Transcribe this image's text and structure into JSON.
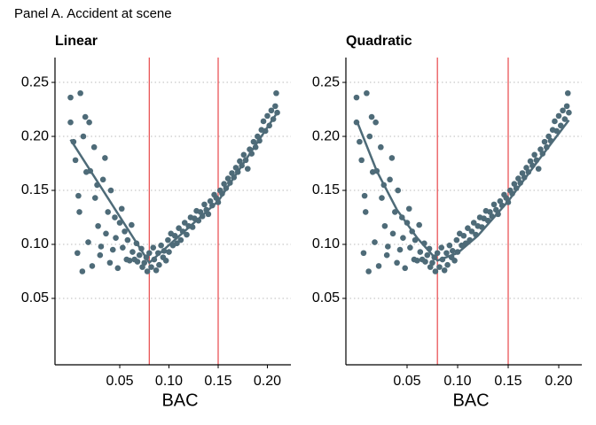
{
  "title": "Panel A. Accident at scene",
  "chart_data": [
    {
      "type": "scatter",
      "title": "Linear",
      "x_label": "BAC",
      "xlim": [
        -0.0158,
        0.2239
      ],
      "ylim": [
        -0.0115,
        0.273
      ],
      "xticks": [
        0.05,
        {
          "value": 0.1,
          "label": "0.10"
        },
        0.15,
        {
          "value": 0.2,
          "label": "0.20"
        }
      ],
      "yticks": [
        0.05,
        {
          "value": 0.1,
          "label": "0.10"
        },
        0.15,
        {
          "value": 0.2,
          "label": "0.20"
        },
        0.25
      ],
      "grid": true,
      "vlines": [
        0.08,
        0.15
      ],
      "vline_color": "#e8474a",
      "series": [
        {
          "kind": "points",
          "color": "#4e6b78",
          "x": [
            0.0,
            0.0,
            0.003,
            0.005,
            0.007,
            0.008,
            0.009,
            0.01,
            0.012,
            0.013,
            0.015,
            0.016,
            0.018,
            0.019,
            0.02,
            0.022,
            0.024,
            0.025,
            0.027,
            0.028,
            0.03,
            0.031,
            0.033,
            0.035,
            0.036,
            0.038,
            0.04,
            0.041,
            0.043,
            0.045,
            0.046,
            0.048,
            0.05,
            0.052,
            0.053,
            0.055,
            0.057,
            0.058,
            0.06,
            0.062,
            0.063,
            0.065,
            0.067,
            0.068,
            0.07,
            0.072,
            0.073,
            0.075,
            0.077,
            0.078,
            0.08,
            0.082,
            0.084,
            0.085,
            0.087,
            0.089,
            0.09,
            0.092,
            0.094,
            0.095,
            0.097,
            0.099,
            0.1,
            0.102,
            0.104,
            0.106,
            0.108,
            0.11,
            0.112,
            0.114,
            0.116,
            0.118,
            0.12,
            0.122,
            0.124,
            0.126,
            0.128,
            0.13,
            0.132,
            0.134,
            0.136,
            0.138,
            0.14,
            0.142,
            0.144,
            0.146,
            0.148,
            0.15,
            0.152,
            0.154,
            0.156,
            0.158,
            0.16,
            0.162,
            0.164,
            0.166,
            0.168,
            0.17,
            0.172,
            0.174,
            0.176,
            0.178,
            0.18,
            0.182,
            0.184,
            0.186,
            0.188,
            0.19,
            0.192,
            0.194,
            0.196,
            0.198,
            0.2,
            0.202,
            0.204,
            0.206,
            0.208,
            0.209,
            0.21
          ],
          "values": [
            0.236,
            0.213,
            0.195,
            0.178,
            0.092,
            0.145,
            0.13,
            0.24,
            0.075,
            0.2,
            0.218,
            0.167,
            0.102,
            0.213,
            0.168,
            0.08,
            0.19,
            0.143,
            0.155,
            0.117,
            0.09,
            0.098,
            0.16,
            0.18,
            0.11,
            0.13,
            0.083,
            0.15,
            0.095,
            0.125,
            0.106,
            0.078,
            0.12,
            0.133,
            0.097,
            0.112,
            0.086,
            0.104,
            0.085,
            0.118,
            0.093,
            0.086,
            0.101,
            0.084,
            0.09,
            0.096,
            0.079,
            0.083,
            0.088,
            0.075,
            0.092,
            0.079,
            0.097,
            0.086,
            0.076,
            0.092,
            0.081,
            0.099,
            0.088,
            0.094,
            0.085,
            0.104,
            0.093,
            0.11,
            0.099,
            0.108,
            0.101,
            0.115,
            0.104,
            0.112,
            0.12,
            0.109,
            0.117,
            0.125,
            0.116,
            0.124,
            0.131,
            0.122,
            0.13,
            0.126,
            0.137,
            0.132,
            0.128,
            0.14,
            0.136,
            0.146,
            0.143,
            0.139,
            0.15,
            0.147,
            0.156,
            0.152,
            0.161,
            0.157,
            0.166,
            0.162,
            0.171,
            0.167,
            0.177,
            0.173,
            0.183,
            0.178,
            0.17,
            0.188,
            0.184,
            0.195,
            0.19,
            0.2,
            0.196,
            0.206,
            0.214,
            0.205,
            0.219,
            0.21,
            0.224,
            0.216,
            0.228,
            0.24,
            0.222
          ]
        },
        {
          "kind": "line",
          "color": "#4e6b78",
          "x": [
            0,
            0.08,
            0.15,
            0.21
          ],
          "values": [
            0.197,
            0.083,
            0.14,
            0.222
          ]
        }
      ]
    },
    {
      "type": "scatter",
      "title": "Quadratic",
      "x_label": "BAC",
      "xlim": [
        -0.0105,
        0.2228
      ],
      "ylim": [
        -0.0115,
        0.273
      ],
      "xticks": [
        0.05,
        {
          "value": 0.1,
          "label": "0.10"
        },
        0.15,
        {
          "value": 0.2,
          "label": "0.20"
        }
      ],
      "yticks": [
        0.05,
        {
          "value": 0.1,
          "label": "0.10"
        },
        0.15,
        {
          "value": 0.2,
          "label": "0.20"
        },
        0.25
      ],
      "grid": true,
      "vlines": [
        0.08,
        0.15
      ],
      "vline_color": "#e8474a",
      "series": [
        {
          "kind": "points",
          "color": "#4e6b78",
          "x": [
            0.0,
            0.0,
            0.003,
            0.005,
            0.007,
            0.008,
            0.009,
            0.01,
            0.012,
            0.013,
            0.015,
            0.016,
            0.018,
            0.019,
            0.02,
            0.022,
            0.024,
            0.025,
            0.027,
            0.028,
            0.03,
            0.031,
            0.033,
            0.035,
            0.036,
            0.038,
            0.04,
            0.041,
            0.043,
            0.045,
            0.046,
            0.048,
            0.05,
            0.052,
            0.053,
            0.055,
            0.057,
            0.058,
            0.06,
            0.062,
            0.063,
            0.065,
            0.067,
            0.068,
            0.07,
            0.072,
            0.073,
            0.075,
            0.077,
            0.078,
            0.08,
            0.082,
            0.084,
            0.085,
            0.087,
            0.089,
            0.09,
            0.092,
            0.094,
            0.095,
            0.097,
            0.099,
            0.1,
            0.102,
            0.104,
            0.106,
            0.108,
            0.11,
            0.112,
            0.114,
            0.116,
            0.118,
            0.12,
            0.122,
            0.124,
            0.126,
            0.128,
            0.13,
            0.132,
            0.134,
            0.136,
            0.138,
            0.14,
            0.142,
            0.144,
            0.146,
            0.148,
            0.15,
            0.152,
            0.154,
            0.156,
            0.158,
            0.16,
            0.162,
            0.164,
            0.166,
            0.168,
            0.17,
            0.172,
            0.174,
            0.176,
            0.178,
            0.18,
            0.182,
            0.184,
            0.186,
            0.188,
            0.19,
            0.192,
            0.194,
            0.196,
            0.198,
            0.2,
            0.202,
            0.204,
            0.206,
            0.208,
            0.209,
            0.21
          ],
          "values": [
            0.236,
            0.213,
            0.195,
            0.178,
            0.092,
            0.145,
            0.13,
            0.24,
            0.075,
            0.2,
            0.218,
            0.167,
            0.102,
            0.213,
            0.168,
            0.08,
            0.19,
            0.143,
            0.155,
            0.117,
            0.09,
            0.098,
            0.16,
            0.18,
            0.11,
            0.13,
            0.083,
            0.15,
            0.095,
            0.125,
            0.106,
            0.078,
            0.12,
            0.133,
            0.097,
            0.112,
            0.086,
            0.104,
            0.085,
            0.118,
            0.093,
            0.086,
            0.101,
            0.084,
            0.09,
            0.096,
            0.079,
            0.083,
            0.088,
            0.075,
            0.092,
            0.079,
            0.097,
            0.086,
            0.076,
            0.092,
            0.081,
            0.099,
            0.088,
            0.094,
            0.085,
            0.104,
            0.093,
            0.11,
            0.099,
            0.108,
            0.101,
            0.115,
            0.104,
            0.112,
            0.12,
            0.109,
            0.117,
            0.125,
            0.116,
            0.124,
            0.131,
            0.122,
            0.13,
            0.126,
            0.137,
            0.132,
            0.128,
            0.14,
            0.136,
            0.146,
            0.143,
            0.139,
            0.15,
            0.147,
            0.156,
            0.152,
            0.161,
            0.157,
            0.166,
            0.162,
            0.171,
            0.167,
            0.177,
            0.173,
            0.183,
            0.178,
            0.17,
            0.188,
            0.184,
            0.195,
            0.19,
            0.2,
            0.196,
            0.206,
            0.214,
            0.205,
            0.219,
            0.21,
            0.224,
            0.216,
            0.228,
            0.24,
            0.222
          ]
        },
        {
          "kind": "line",
          "color": "#4e6b78",
          "x": [
            0,
            0.02,
            0.04,
            0.06,
            0.08,
            0.1,
            0.12,
            0.15,
            0.18,
            0.21
          ],
          "values": [
            0.215,
            0.168,
            0.132,
            0.106,
            0.085,
            0.092,
            0.108,
            0.14,
            0.178,
            0.215
          ]
        }
      ]
    }
  ]
}
